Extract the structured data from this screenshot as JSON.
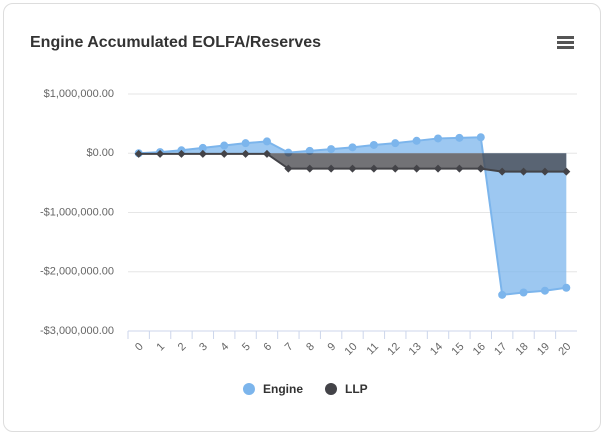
{
  "chart_data": {
    "type": "area",
    "title": "Engine Accumulated EOLFA/Reserves",
    "categories": [
      "0",
      "1",
      "2",
      "3",
      "4",
      "5",
      "6",
      "7",
      "8",
      "9",
      "10",
      "11",
      "12",
      "13",
      "14",
      "15",
      "16",
      "17",
      "18",
      "19",
      "20"
    ],
    "series": [
      {
        "name": "Engine",
        "color": "#7cb5ec",
        "values": [
          0,
          20000,
          50000,
          90000,
          130000,
          170000,
          200000,
          10000,
          40000,
          70000,
          100000,
          140000,
          170000,
          210000,
          250000,
          260000,
          270000,
          -2390000,
          -2350000,
          -2320000,
          -2270000
        ]
      },
      {
        "name": "LLP",
        "color": "#434348",
        "values": [
          -10000,
          -10000,
          -10000,
          -10000,
          -10000,
          -10000,
          -10000,
          -260000,
          -260000,
          -260000,
          -260000,
          -260000,
          -260000,
          -260000,
          -260000,
          -260000,
          -260000,
          -310000,
          -310000,
          -310000,
          -310000
        ]
      }
    ],
    "ylim": [
      -3000000,
      1000000
    ],
    "yticks": [
      {
        "value": -3000000,
        "label": "-$3,000,000.00"
      },
      {
        "value": -2000000,
        "label": "-$2,000,000.00"
      },
      {
        "value": -1000000,
        "label": "-$1,000,000.00"
      },
      {
        "value": 0,
        "label": "$0.00"
      },
      {
        "value": 1000000,
        "label": "$1,000,000.00"
      }
    ],
    "grid": true
  }
}
